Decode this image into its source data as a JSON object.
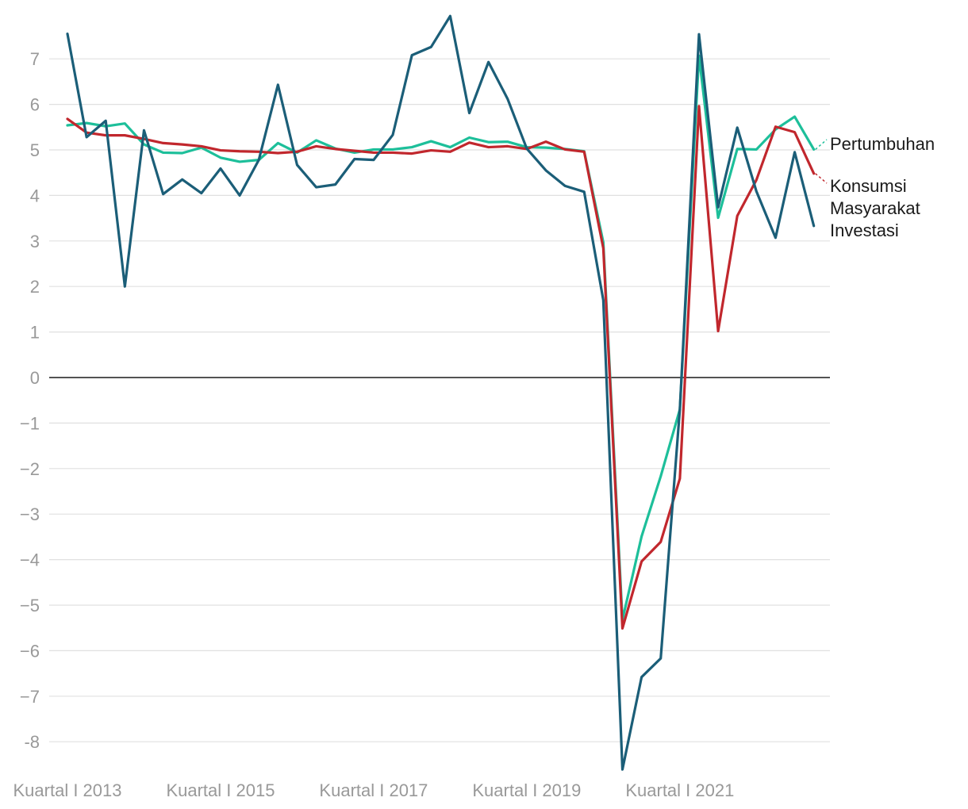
{
  "chart_data": {
    "type": "line",
    "title": "",
    "xlabel": "",
    "ylabel": "",
    "ylim": [
      -8.6,
      7.9
    ],
    "yticks": [
      7,
      6,
      5,
      4,
      3,
      2,
      1,
      0,
      -1,
      -2,
      -3,
      -4,
      -5,
      -6,
      -7,
      -8
    ],
    "ytick_labels": [
      "7",
      "6",
      "5",
      "4",
      "3",
      "2",
      "1",
      "0",
      "−1",
      "−2",
      "−3",
      "−4",
      "−5",
      "−6",
      "−7",
      "-8"
    ],
    "xticks": [
      {
        "label": "Kuartal I 2013",
        "index": 0
      },
      {
        "label": "Kuartal I 2015",
        "index": 8
      },
      {
        "label": "Kuartal I 2017",
        "index": 16
      },
      {
        "label": "Kuartal I 2019",
        "index": 24
      },
      {
        "label": "Kuartal I 2021",
        "index": 32
      }
    ],
    "grid": true,
    "legend_placement": "right (end labels)",
    "series": [
      {
        "name": "Pertumbuhan",
        "color": "#1dbf9a",
        "values": [
          5.54,
          5.59,
          5.52,
          5.58,
          5.12,
          4.94,
          4.93,
          5.05,
          4.83,
          4.74,
          4.78,
          5.15,
          4.94,
          5.21,
          5.03,
          4.94,
          5.01,
          5.01,
          5.06,
          5.19,
          5.06,
          5.27,
          5.17,
          5.18,
          5.06,
          5.05,
          5.02,
          4.97,
          2.97,
          -5.32,
          -3.49,
          -2.17,
          -0.7,
          7.07,
          3.51,
          5.02,
          5.01,
          5.45,
          5.73,
          5.01
        ]
      },
      {
        "name": "Konsumsi Masyarakat",
        "color": "#c1272d",
        "values": [
          5.68,
          5.38,
          5.32,
          5.32,
          5.24,
          5.15,
          5.12,
          5.08,
          4.99,
          4.97,
          4.96,
          4.93,
          4.96,
          5.08,
          5.02,
          4.98,
          4.94,
          4.94,
          4.92,
          4.99,
          4.96,
          5.16,
          5.06,
          5.08,
          5.02,
          5.18,
          5.01,
          4.96,
          2.84,
          -5.51,
          -4.04,
          -3.61,
          -2.22,
          5.96,
          1.02,
          3.55,
          4.34,
          5.51,
          5.39,
          4.48
        ]
      },
      {
        "name": "Investasi",
        "color": "#1b5e78",
        "values": [
          7.55,
          5.28,
          5.64,
          2.0,
          5.43,
          4.03,
          4.35,
          4.05,
          4.59,
          4.0,
          4.78,
          6.43,
          4.67,
          4.18,
          4.24,
          4.8,
          4.78,
          5.33,
          7.08,
          7.26,
          7.94,
          5.81,
          6.93,
          6.12,
          5.03,
          4.55,
          4.21,
          4.08,
          1.7,
          -8.61,
          -6.58,
          -6.17,
          -0.7,
          7.54,
          3.74,
          5.49,
          4.09,
          3.07,
          4.95,
          3.33
        ]
      }
    ]
  }
}
